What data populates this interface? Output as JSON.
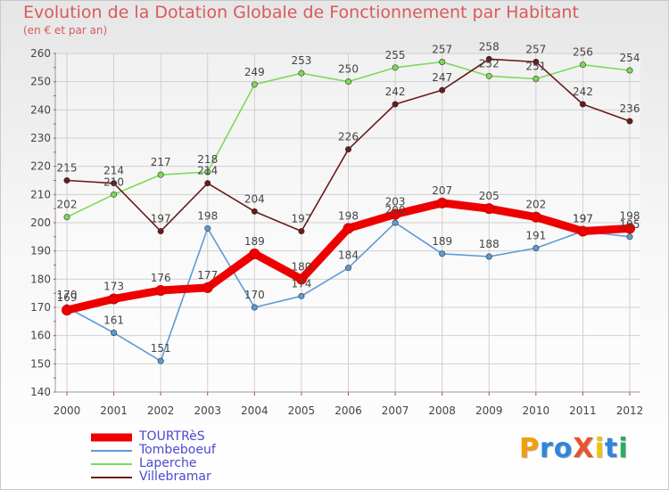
{
  "header": {
    "title": "Evolution de la Dotation Globale de Fonctionnement par Habitant",
    "subtitle": "(en € et par an)"
  },
  "logo": {
    "text": "ProXiti"
  },
  "chart_data": {
    "type": "line",
    "x": [
      "2000",
      "2001",
      "2002",
      "2003",
      "2004",
      "2005",
      "2006",
      "2007",
      "2008",
      "2009",
      "2010",
      "2011",
      "2012"
    ],
    "ylim": [
      140,
      260
    ],
    "yticks": [
      140,
      150,
      160,
      170,
      180,
      190,
      200,
      210,
      220,
      230,
      240,
      250,
      260
    ],
    "grid": true,
    "legend_position": "bottom-left",
    "series": [
      {
        "name": "TOURTRèS",
        "color": "#ee0000",
        "values": [
          169,
          173,
          176,
          177,
          189,
          180,
          198,
          203,
          207,
          205,
          202,
          197,
          198
        ]
      },
      {
        "name": "Tombeboeuf",
        "color": "#5b9bd5",
        "values": [
          170,
          161,
          151,
          198,
          170,
          174,
          184,
          200,
          189,
          188,
          191,
          197,
          195
        ]
      },
      {
        "name": "Laperche",
        "color": "#7ed957",
        "values": [
          202,
          210,
          217,
          218,
          249,
          253,
          250,
          255,
          257,
          252,
          251,
          256,
          254
        ]
      },
      {
        "name": "Villebramar",
        "color": "#6b1a1a",
        "values": [
          215,
          214,
          197,
          214,
          204,
          197,
          226,
          242,
          247,
          258,
          257,
          242,
          236
        ]
      }
    ]
  }
}
